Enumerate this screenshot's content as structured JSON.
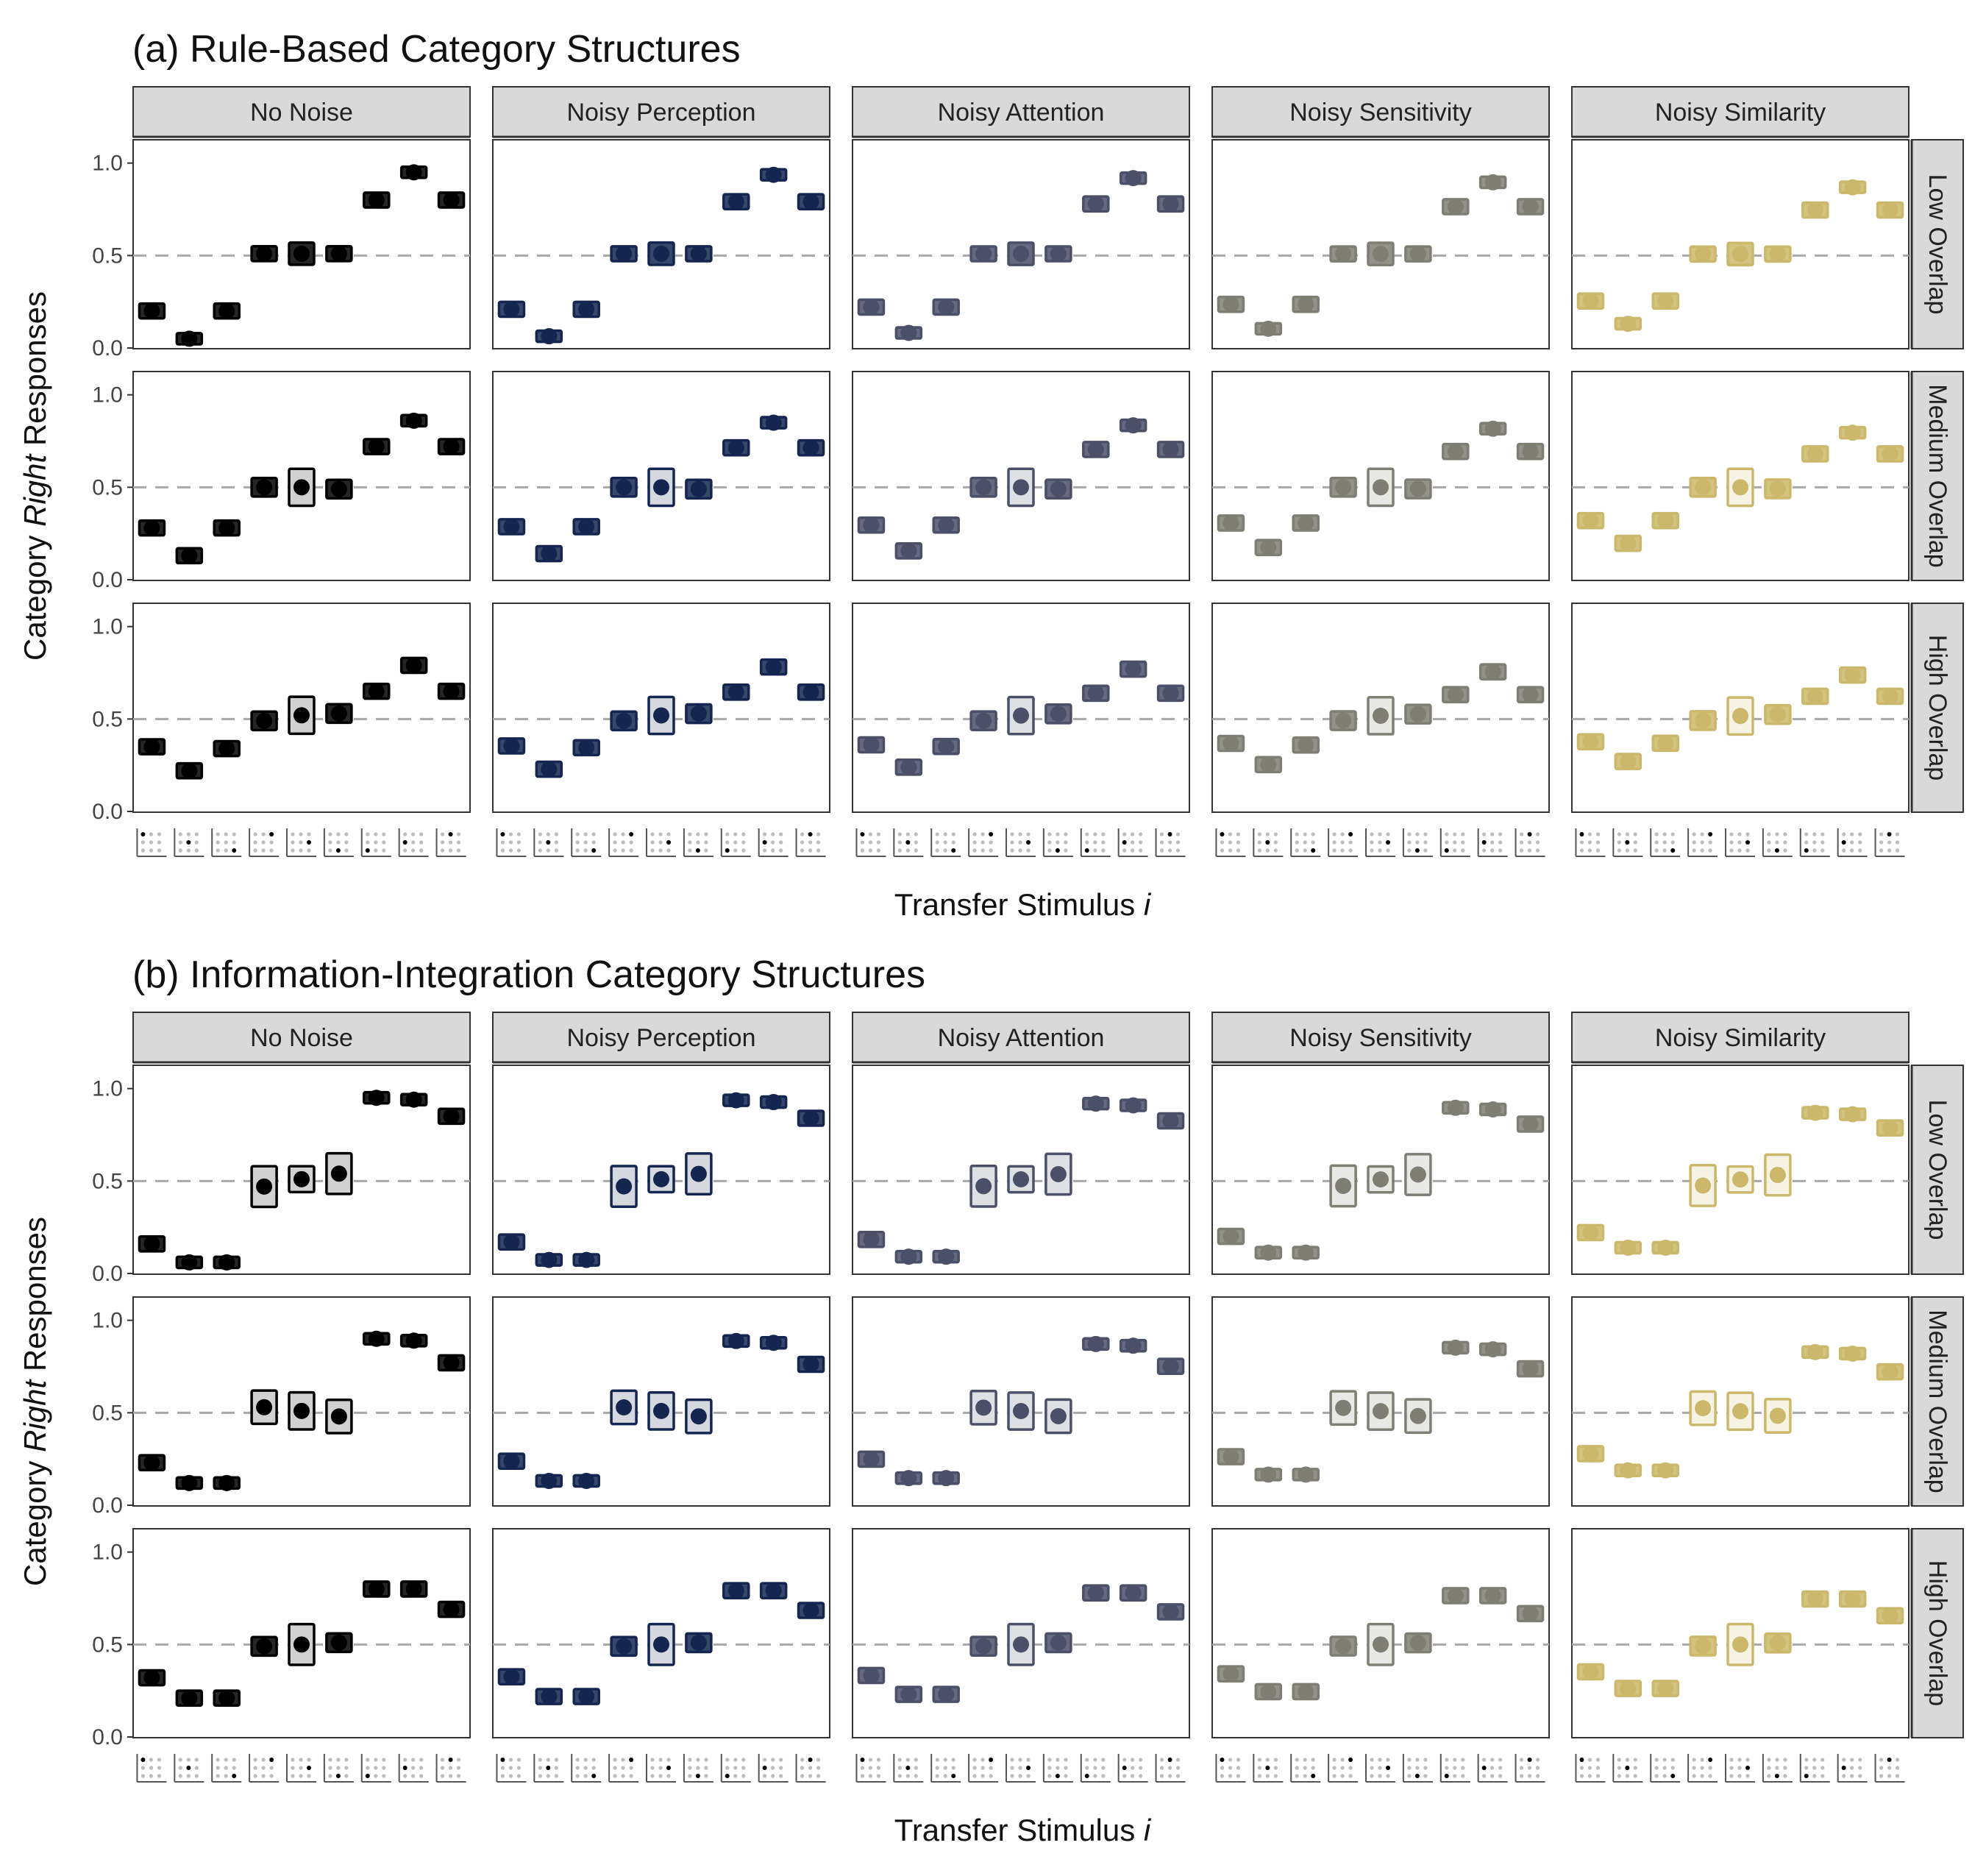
{
  "chart_data": {
    "type": "scatter",
    "ylabel_parts": [
      "Category ",
      "Right",
      " Responses"
    ],
    "xlabel_parts": [
      "Transfer Stimulus ",
      "i"
    ],
    "y_ticks": [
      "0.0",
      "0.5",
      "1.0"
    ],
    "ylim": [
      0,
      1
    ],
    "reference_line_y": 0.5,
    "columns": [
      "No Noise",
      "Noisy Perception",
      "Noisy Attention",
      "Noisy Sensitivity",
      "Noisy Similarity"
    ],
    "rows": [
      "Low Overlap",
      "Medium Overlap",
      "High Overlap"
    ],
    "colors": {
      "No Noise": "#000000",
      "Noisy Perception": "#14254f",
      "Noisy Attention": "#4b5068",
      "Noisy Sensitivity": "#7f7e75",
      "Noisy Similarity": "#cbb86a"
    },
    "panels": [
      {
        "title": "(a) Rule-Based Category Structures",
        "mid": [
          [
            0.2,
            0.05,
            0.2,
            0.51,
            0.51,
            0.51,
            0.8,
            0.95,
            0.8
          ],
          [
            0.28,
            0.13,
            0.28,
            0.5,
            0.5,
            0.49,
            0.72,
            0.86,
            0.72
          ],
          [
            0.35,
            0.22,
            0.34,
            0.49,
            0.52,
            0.53,
            0.65,
            0.79,
            0.65
          ]
        ],
        "halfwidth": [
          [
            0.04,
            0.03,
            0.04,
            0.04,
            0.06,
            0.04,
            0.04,
            0.03,
            0.04
          ],
          [
            0.04,
            0.04,
            0.04,
            0.05,
            0.1,
            0.05,
            0.04,
            0.03,
            0.04
          ],
          [
            0.04,
            0.04,
            0.04,
            0.05,
            0.1,
            0.05,
            0.04,
            0.04,
            0.04
          ]
        ]
      },
      {
        "title": "(b) Information-Integration Category Structures",
        "mid": [
          [
            0.16,
            0.06,
            0.06,
            0.47,
            0.51,
            0.54,
            0.95,
            0.94,
            0.85
          ],
          [
            0.23,
            0.12,
            0.12,
            0.53,
            0.51,
            0.48,
            0.9,
            0.89,
            0.77
          ],
          [
            0.32,
            0.21,
            0.21,
            0.49,
            0.5,
            0.51,
            0.8,
            0.8,
            0.69
          ]
        ],
        "halfwidth": [
          [
            0.04,
            0.03,
            0.03,
            0.11,
            0.07,
            0.11,
            0.03,
            0.03,
            0.04
          ],
          [
            0.04,
            0.03,
            0.03,
            0.09,
            0.1,
            0.09,
            0.03,
            0.03,
            0.04
          ],
          [
            0.04,
            0.04,
            0.04,
            0.05,
            0.11,
            0.05,
            0.04,
            0.04,
            0.04
          ]
        ]
      }
    ],
    "noise_scale": {
      "No Noise": 1.0,
      "Noisy Perception": 0.97,
      "Noisy Attention": 0.93,
      "Noisy Sensitivity": 0.88,
      "Noisy Similarity": 0.82
    }
  }
}
